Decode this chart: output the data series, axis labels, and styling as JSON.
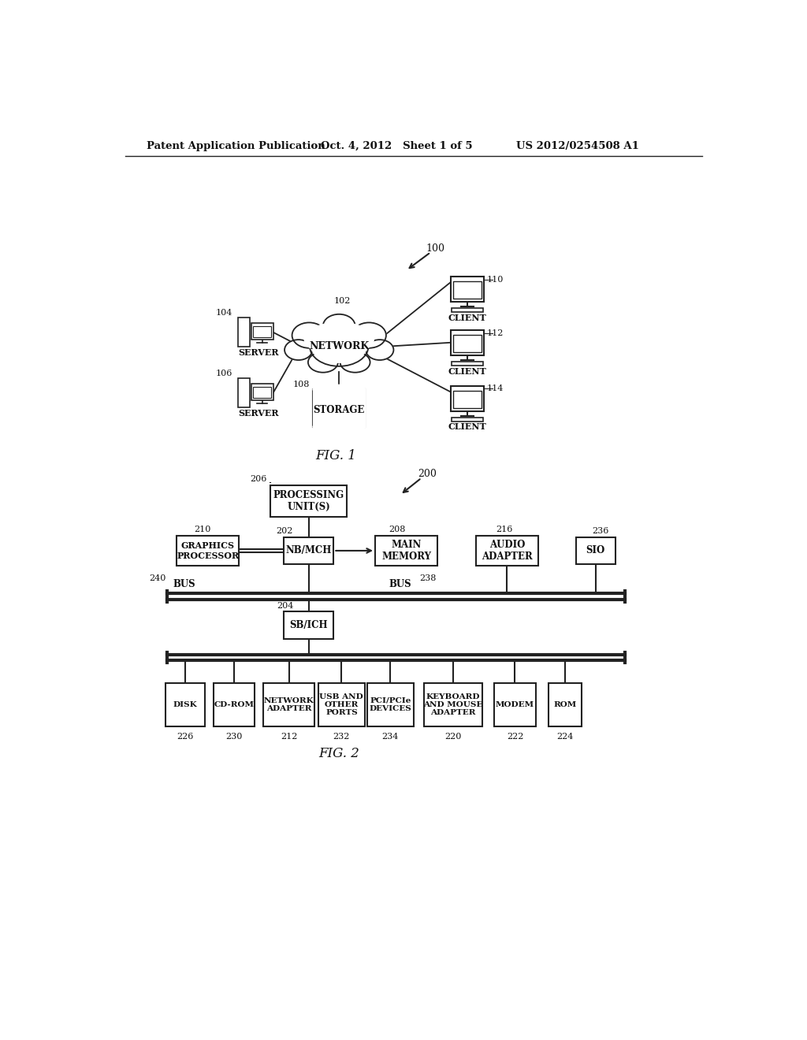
{
  "header_left": "Patent Application Publication",
  "header_mid": "Oct. 4, 2012   Sheet 1 of 5",
  "header_right": "US 2012/0254508 A1",
  "fig1_label": "FIG. 1",
  "fig2_label": "FIG. 2",
  "bg_color": "#ffffff",
  "line_color": "#222222",
  "text_color": "#111111",
  "fig1": {
    "network_label": "NETWORK",
    "network_ref": "102",
    "system_ref": "100",
    "server1_label": "SERVER",
    "server1_ref": "104",
    "server2_label": "SERVER",
    "server2_ref": "106",
    "storage_label": "STORAGE",
    "storage_ref": "108",
    "client1_label": "CLIENT",
    "client1_ref": "110",
    "client2_label": "CLIENT",
    "client2_ref": "112",
    "client3_label": "CLIENT",
    "client3_ref": "114"
  },
  "fig2": {
    "system_ref": "200",
    "proc_label": "PROCESSING\nUNIT(S)",
    "proc_ref": "206",
    "nbmch_label": "NB/MCH",
    "nbmch_ref": "202",
    "graphics_label": "GRAPHICS\nPROCESSOR",
    "graphics_ref": "210",
    "mainmem_label": "MAIN\nMEMORY",
    "mainmem_ref": "208",
    "audio_label": "AUDIO\nADAPTER",
    "audio_ref": "216",
    "sio_label": "SIO",
    "sio_ref": "236",
    "sbich_label": "SB/ICH",
    "sbich_ref": "204",
    "bus1_label": "BUS",
    "bus1_ref": "240",
    "bus2_label": "BUS",
    "bus2_ref": "238",
    "disk_label": "DISK",
    "disk_ref": "226",
    "cdrom_label": "CD-ROM",
    "cdrom_ref": "230",
    "netadap_label": "NETWORK\nADAPTER",
    "netadap_ref": "212",
    "usb_label": "USB AND\nOTHER\nPORTS",
    "usb_ref": "232",
    "pci_label": "PCI/PCIe\nDEVICES",
    "pci_ref": "234",
    "kbd_label": "KEYBOARD\nAND MOUSE\nADAPTER",
    "kbd_ref": "220",
    "modem_label": "MODEM",
    "modem_ref": "222",
    "rom_label": "ROM",
    "rom_ref": "224"
  }
}
